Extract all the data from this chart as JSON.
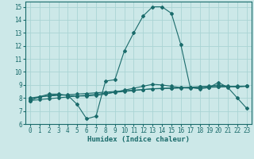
{
  "xlabel": "Humidex (Indice chaleur)",
  "ylabel": "",
  "background_color": "#cce8e8",
  "grid_color": "#aad4d4",
  "line_color": "#1a6b6b",
  "xlim": [
    -0.5,
    23.5
  ],
  "ylim": [
    6,
    15.4
  ],
  "xticks": [
    0,
    1,
    2,
    3,
    4,
    5,
    6,
    7,
    8,
    9,
    10,
    11,
    12,
    13,
    14,
    15,
    16,
    17,
    18,
    19,
    20,
    21,
    22,
    23
  ],
  "yticks": [
    6,
    7,
    8,
    9,
    10,
    11,
    12,
    13,
    14,
    15
  ],
  "line1_x": [
    0,
    1,
    2,
    3,
    4,
    5,
    6,
    7,
    8,
    9,
    10,
    11,
    12,
    13,
    14,
    15,
    16,
    17,
    18,
    19,
    20,
    21,
    22,
    23
  ],
  "line1_y": [
    7.8,
    8.1,
    8.3,
    8.3,
    8.2,
    7.5,
    6.4,
    6.6,
    9.3,
    9.4,
    11.6,
    13.0,
    14.3,
    15.0,
    15.0,
    14.5,
    12.1,
    8.8,
    8.7,
    8.8,
    9.2,
    8.8,
    8.0,
    7.2
  ],
  "line2_x": [
    0,
    1,
    2,
    3,
    4,
    5,
    6,
    7,
    8,
    9,
    10,
    11,
    12,
    13,
    14,
    15,
    16,
    17,
    18,
    19,
    20,
    21,
    22,
    23
  ],
  "line2_y": [
    8.0,
    8.1,
    8.15,
    8.2,
    8.25,
    8.3,
    8.35,
    8.4,
    8.45,
    8.5,
    8.55,
    8.6,
    8.65,
    8.7,
    8.72,
    8.74,
    8.76,
    8.78,
    8.8,
    8.82,
    8.84,
    8.86,
    8.88,
    8.9
  ],
  "line3_x": [
    0,
    1,
    2,
    3,
    4,
    5,
    6,
    7,
    8,
    9,
    10,
    11,
    12,
    13,
    14,
    15,
    16,
    17,
    18,
    19,
    20,
    21,
    22,
    23
  ],
  "line3_y": [
    7.8,
    7.87,
    7.94,
    8.01,
    8.08,
    8.15,
    8.22,
    8.29,
    8.36,
    8.43,
    8.5,
    8.57,
    8.64,
    8.71,
    8.74,
    8.77,
    8.8,
    8.83,
    8.86,
    8.87,
    8.88,
    8.89,
    8.9,
    8.91
  ],
  "line4_x": [
    0,
    1,
    2,
    3,
    4,
    5,
    6,
    7,
    8,
    9,
    10,
    11,
    12,
    13,
    14,
    15,
    16,
    17,
    18,
    19,
    20,
    21,
    22,
    23
  ],
  "line4_y": [
    7.9,
    8.05,
    8.2,
    8.25,
    8.2,
    8.15,
    8.15,
    8.2,
    8.3,
    8.45,
    8.6,
    8.75,
    8.9,
    9.05,
    9.0,
    8.9,
    8.8,
    8.75,
    8.85,
    8.9,
    9.0,
    8.9,
    8.85,
    8.9
  ],
  "font_size_label": 6.5,
  "font_size_tick": 5.5,
  "marker": "D",
  "markersize": 2.0,
  "linewidth": 0.8
}
